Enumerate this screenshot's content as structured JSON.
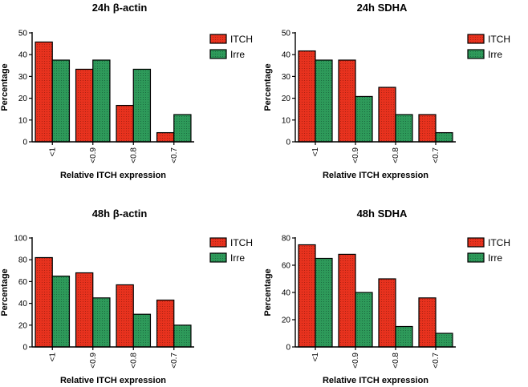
{
  "colors": {
    "itch": "#e8321e",
    "irre": "#2e9a5a",
    "axis": "#000000"
  },
  "chart_data": [
    {
      "type": "bar",
      "title": "24h β-actin",
      "xlabel": "Relative ITCH expression",
      "ylabel": "Percentage",
      "categories": [
        "<1",
        "<0.9",
        "<0.8",
        "<0.7"
      ],
      "ylim": [
        0,
        50
      ],
      "yticks": [
        0,
        10,
        20,
        30,
        40,
        50
      ],
      "series": [
        {
          "name": "ITCH",
          "values": [
            45.8,
            33.3,
            16.7,
            4.2
          ]
        },
        {
          "name": "Irre",
          "values": [
            37.5,
            37.5,
            33.3,
            12.5
          ]
        }
      ],
      "legend": "top-right"
    },
    {
      "type": "bar",
      "title": "24h SDHA",
      "xlabel": "Relative ITCH expression",
      "ylabel": "Percentage",
      "categories": [
        "<1",
        "<0.9",
        "<0.8",
        "<0.7"
      ],
      "ylim": [
        0,
        50
      ],
      "yticks": [
        0,
        10,
        20,
        30,
        40,
        50
      ],
      "series": [
        {
          "name": "ITCH",
          "values": [
            41.7,
            37.5,
            25.0,
            12.5
          ]
        },
        {
          "name": "Irre",
          "values": [
            37.5,
            20.8,
            12.5,
            4.2
          ]
        }
      ],
      "legend": "top-right"
    },
    {
      "type": "bar",
      "title": "48h β-actin",
      "xlabel": "Relative ITCH expression",
      "ylabel": "Percentage",
      "categories": [
        "<1",
        "<0.9",
        "<0.8",
        "<0.7"
      ],
      "ylim": [
        0,
        100
      ],
      "yticks": [
        0,
        20,
        40,
        60,
        80,
        100
      ],
      "series": [
        {
          "name": "ITCH",
          "values": [
            82,
            68,
            57,
            43
          ]
        },
        {
          "name": "Irre",
          "values": [
            65,
            45,
            30,
            20
          ]
        }
      ],
      "legend": "top-right"
    },
    {
      "type": "bar",
      "title": "48h SDHA",
      "xlabel": "Relative ITCH expression",
      "ylabel": "Percentage",
      "categories": [
        "<1",
        "<0.9",
        "<0.8",
        "<0.7"
      ],
      "ylim": [
        0,
        80
      ],
      "yticks": [
        0,
        20,
        40,
        60,
        80
      ],
      "series": [
        {
          "name": "ITCH",
          "values": [
            75,
            68,
            50,
            36
          ]
        },
        {
          "name": "Irre",
          "values": [
            65,
            40,
            15,
            10
          ]
        }
      ],
      "legend": "top-right"
    }
  ]
}
